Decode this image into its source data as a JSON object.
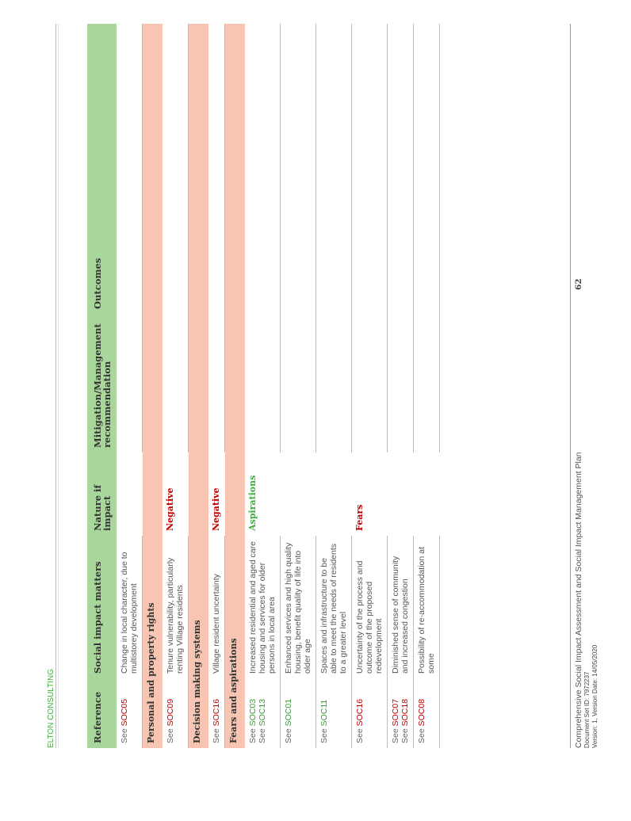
{
  "header": {
    "company": "ELTON CONSULTING"
  },
  "table": {
    "columns": [
      "Reference",
      "Social impact matters",
      "Nature if impact",
      "Mitigation/Management recommendation",
      "Outcomes"
    ],
    "rows": [
      {
        "type": "row",
        "ref_prefix": "See",
        "refs": [
          {
            "code": "SOC05",
            "color": "red"
          }
        ],
        "matter": "Change in local character, due to multistorey development",
        "nature": "",
        "nature_color": ""
      },
      {
        "type": "section",
        "title": "Personal and property rights"
      },
      {
        "type": "row",
        "ref_prefix": "See",
        "refs": [
          {
            "code": "SOC09",
            "color": "red"
          }
        ],
        "matter": "Tenure vulnerability, particularly renting Village residents",
        "nature": "Negative",
        "nature_color": "red"
      },
      {
        "type": "section",
        "title": "Decision making systems"
      },
      {
        "type": "row",
        "ref_prefix": "See",
        "refs": [
          {
            "code": "SOC16",
            "color": "red"
          }
        ],
        "matter": "Village resident uncertainty",
        "nature": "Negative",
        "nature_color": "red"
      },
      {
        "type": "section",
        "title": "Fears and aspirations"
      },
      {
        "type": "row",
        "ref_prefix": "See",
        "refs": [
          {
            "code": "SOC03",
            "color": "green"
          },
          {
            "code": "SOC13",
            "color": "green"
          }
        ],
        "matter": "Increased residential and aged care housing and services for older persons in local area",
        "nature": "Aspirations",
        "nature_color": "green"
      },
      {
        "type": "row",
        "ref_prefix": "See",
        "refs": [
          {
            "code": "SOC01",
            "color": "green"
          }
        ],
        "matter": "Enhanced services and high quality housing, benefit quality of life into older age",
        "nature": "",
        "nature_color": ""
      },
      {
        "type": "row",
        "ref_prefix": "See",
        "refs": [
          {
            "code": "SOC11",
            "color": "green"
          }
        ],
        "matter": "Spaces and infrastructure to be able to meet the needs of residents to a greater level",
        "nature": "",
        "nature_color": ""
      },
      {
        "type": "row",
        "ref_prefix": "See",
        "refs": [
          {
            "code": "SOC16",
            "color": "red"
          }
        ],
        "matter": "Uncertainty of the process and outcome of the proposed redevelopment",
        "nature": "Fears",
        "nature_color": "red"
      },
      {
        "type": "row",
        "ref_prefix": "See",
        "refs": [
          {
            "code": "SOC07",
            "color": "red"
          },
          {
            "code": "SOC18",
            "color": "red"
          }
        ],
        "matter": "Diminished sense of community and increased congestion",
        "nature": "",
        "nature_color": ""
      },
      {
        "type": "row",
        "ref_prefix": "See",
        "refs": [
          {
            "code": "SOC08",
            "color": "red"
          }
        ],
        "matter": "Possibility of re-accommodation at some",
        "nature": "",
        "nature_color": ""
      }
    ]
  },
  "footer": {
    "title": "Comprehensive Social Impact Assessment and Social Impact Management Plan",
    "doc_set": "Document Set ID: 7972237",
    "version": "Version: 1, Version Date: 14/05/2020",
    "page": "62"
  },
  "colors": {
    "header_green": "#a9d69b",
    "section_salmon": "#f8c5b3",
    "negative_red": "#c00000",
    "aspiration_green": "#3fae3f"
  }
}
